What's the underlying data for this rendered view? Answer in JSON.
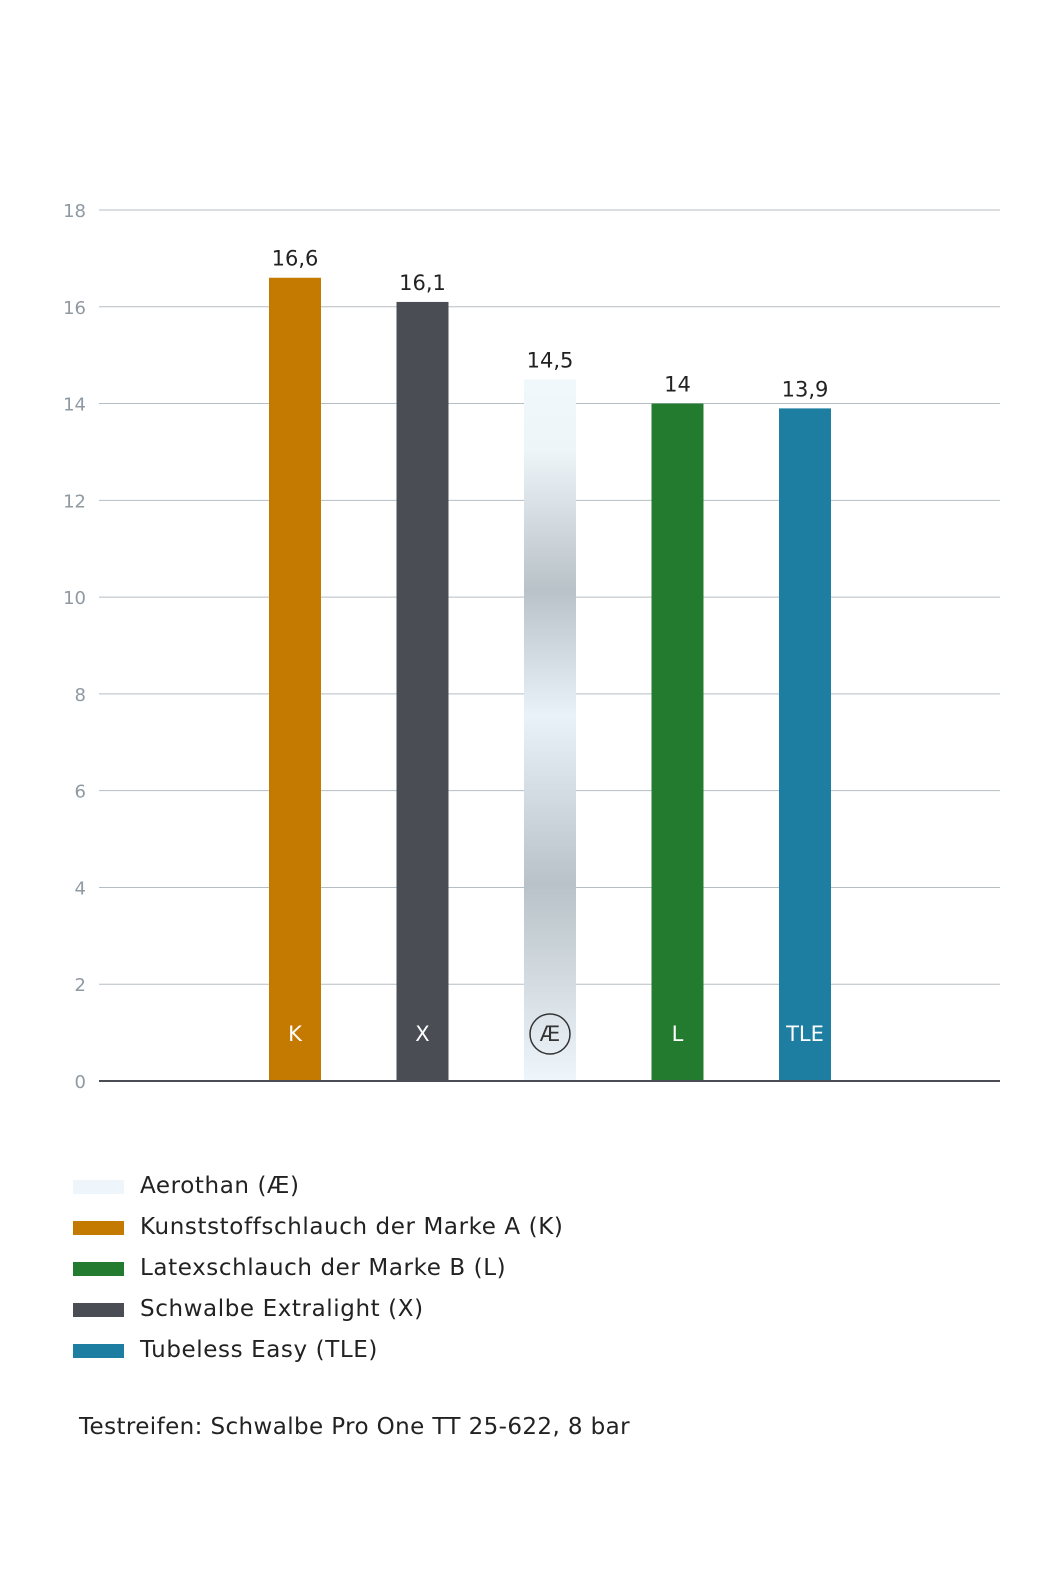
{
  "chart_data": {
    "type": "bar",
    "categories": [
      "K",
      "X",
      "Æ",
      "L",
      "TLE"
    ],
    "values": [
      16.6,
      16.1,
      14.5,
      14,
      13.9
    ],
    "value_labels": [
      "16,6",
      "16,1",
      "14,5",
      "14",
      "13,9"
    ],
    "bar_colors": [
      "#c47a00",
      "#4a4d53",
      "aerothan-gradient",
      "#237b30",
      "#1e7ea1"
    ],
    "ylim": [
      0,
      18
    ],
    "yticks": [
      0,
      2,
      4,
      6,
      8,
      10,
      12,
      14,
      16,
      18
    ],
    "grid": true,
    "legend_position": "bottom"
  },
  "legend": [
    {
      "label": "Aerothan (Æ)",
      "color": "#eef6fb"
    },
    {
      "label": "Kunststoffschlauch der Marke A (K)",
      "color": "#c47a00"
    },
    {
      "label": "Latexschlauch der Marke B (L)",
      "color": "#237b30"
    },
    {
      "label": "Schwalbe Extralight (X)",
      "color": "#4a4d53"
    },
    {
      "label": "Tubeless Easy (TLE)",
      "color": "#1e7ea1"
    }
  ],
  "footnote": "Testreifen: Schwalbe Pro One TT 25-622, 8 bar"
}
